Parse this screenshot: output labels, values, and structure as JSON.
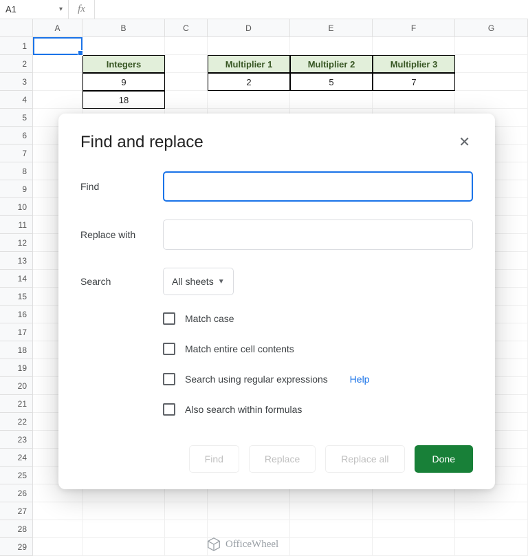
{
  "name_box": {
    "value": "A1",
    "dropdown_glyph": "▾"
  },
  "fx": {
    "label": "fx",
    "value": ""
  },
  "columns": [
    "A",
    "B",
    "C",
    "D",
    "E",
    "F",
    "G"
  ],
  "row_count": 29,
  "sheet_data": {
    "integers_table": {
      "header": "Integers",
      "values": [
        "9",
        "18"
      ],
      "header_bg": "#e2efda",
      "header_fg": "#375623"
    },
    "multipliers_table": {
      "headers": [
        "Multiplier 1",
        "Multiplier 2",
        "Multiplier 3"
      ],
      "values": [
        "2",
        "5",
        "7"
      ],
      "header_bg": "#e2efda",
      "header_fg": "#375623"
    }
  },
  "selected_cell": "A1",
  "dialog": {
    "title": "Find and replace",
    "close_glyph": "✕",
    "find_label": "Find",
    "find_value": "",
    "replace_label": "Replace with",
    "replace_value": "",
    "search_label": "Search",
    "search_scope": "All sheets",
    "checks": {
      "match_case": "Match case",
      "match_entire": "Match entire cell contents",
      "regex": "Search using regular expressions",
      "regex_help": "Help",
      "formulas": "Also search within formulas"
    },
    "buttons": {
      "find": "Find",
      "replace": "Replace",
      "replace_all": "Replace all",
      "done": "Done"
    }
  },
  "watermark": {
    "text": "OfficeWheel"
  },
  "colors": {
    "accent": "#1a73e8",
    "primary_btn": "#188038",
    "grid_line": "#e0e0e0"
  }
}
